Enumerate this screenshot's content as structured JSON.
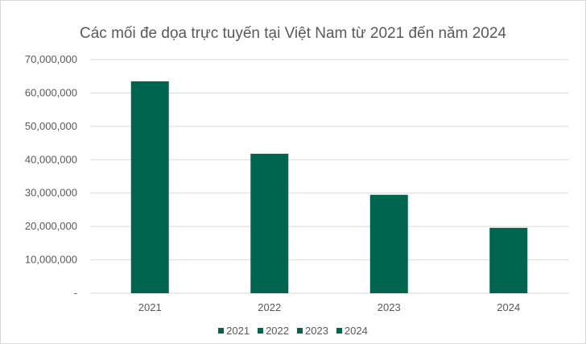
{
  "chart_data": {
    "type": "bar",
    "title": "Các mối đe dọa trực tuyến tại Việt Nam từ 2021 đến năm 2024",
    "categories": [
      "2021",
      "2022",
      "2023",
      "2024"
    ],
    "series": [
      {
        "name": "Các mối đe dọa trực tuyến",
        "values": [
          63500000,
          41800000,
          29500000,
          19600000
        ]
      }
    ],
    "ylim": [
      0,
      70000000
    ],
    "y_ticks": [
      "-",
      "10,000,000",
      "20,000,000",
      "30,000,000",
      "40,000,000",
      "50,000,000",
      "60,000,000",
      "70,000,000"
    ],
    "y_tick_values": [
      0,
      10000000,
      20000000,
      30000000,
      40000000,
      50000000,
      60000000,
      70000000
    ],
    "legend": [
      "2021",
      "2022",
      "2023",
      "2024"
    ],
    "legend_position": "bottom",
    "grid": true,
    "bar_color": "#00654f",
    "grid_color": "#d9d9d9",
    "text_color": "#595959"
  }
}
